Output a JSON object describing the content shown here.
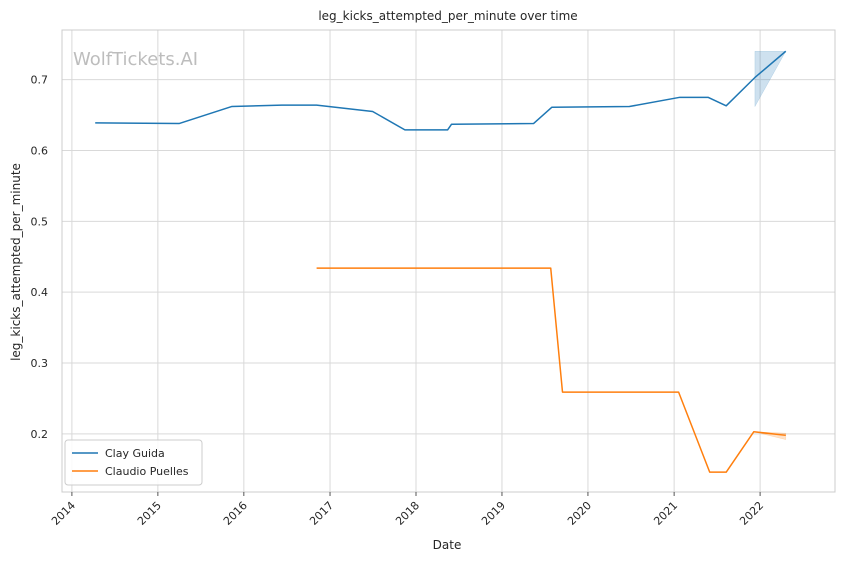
{
  "chart_data": {
    "type": "line",
    "title": "leg_kicks_attempted_per_minute over time",
    "xlabel": "Date",
    "ylabel": "leg_kicks_attempted_per_minute",
    "watermark": "WolfTickets.AI",
    "xlim": [
      "2013-11-20",
      "2022-11-15"
    ],
    "ylim": [
      0.118,
      0.77
    ],
    "x_ticks": [
      "2014",
      "2015",
      "2016",
      "2017",
      "2018",
      "2019",
      "2020",
      "2021",
      "2022"
    ],
    "y_ticks": [
      "0.2",
      "0.3",
      "0.4",
      "0.5",
      "0.6",
      "0.7"
    ],
    "y_tick_values": [
      0.2,
      0.3,
      0.4,
      0.5,
      0.6,
      0.7
    ],
    "grid": true,
    "legend_position": "lower-left",
    "series": [
      {
        "name": "Clay Guida",
        "color": "#1f77b4",
        "points": [
          [
            "2014-04-10",
            0.639
          ],
          [
            "2015-04-01",
            0.638
          ],
          [
            "2015-11-10",
            0.662
          ],
          [
            "2016-06-10",
            0.664
          ],
          [
            "2016-11-05",
            0.664
          ],
          [
            "2017-07-01",
            0.655
          ],
          [
            "2017-11-15",
            0.629
          ],
          [
            "2018-05-15",
            0.629
          ],
          [
            "2018-06-01",
            0.637
          ],
          [
            "2019-05-15",
            0.638
          ],
          [
            "2019-08-01",
            0.661
          ],
          [
            "2020-06-25",
            0.662
          ],
          [
            "2021-01-25",
            0.675
          ],
          [
            "2021-05-25",
            0.675
          ],
          [
            "2021-08-10",
            0.663
          ],
          [
            "2021-12-10",
            0.703
          ],
          [
            "2022-04-20",
            0.74
          ]
        ],
        "band": {
          "x": [
            "2021-12-10",
            "2022-04-20"
          ],
          "upper": [
            0.74,
            0.74
          ],
          "lower": [
            0.662,
            0.74
          ]
        }
      },
      {
        "name": "Claudio Puelles",
        "color": "#ff7f0e",
        "points": [
          [
            "2016-11-05",
            0.434
          ],
          [
            "2019-07-27",
            0.434
          ],
          [
            "2019-09-15",
            0.259
          ],
          [
            "2021-01-20",
            0.259
          ],
          [
            "2021-06-01",
            0.146
          ],
          [
            "2021-08-10",
            0.146
          ],
          [
            "2021-12-05",
            0.203
          ],
          [
            "2022-04-20",
            0.198
          ]
        ],
        "band": {
          "x": [
            "2021-12-05",
            "2022-04-20"
          ],
          "upper": [
            0.203,
            0.201
          ],
          "lower": [
            0.203,
            0.192
          ]
        }
      }
    ]
  }
}
